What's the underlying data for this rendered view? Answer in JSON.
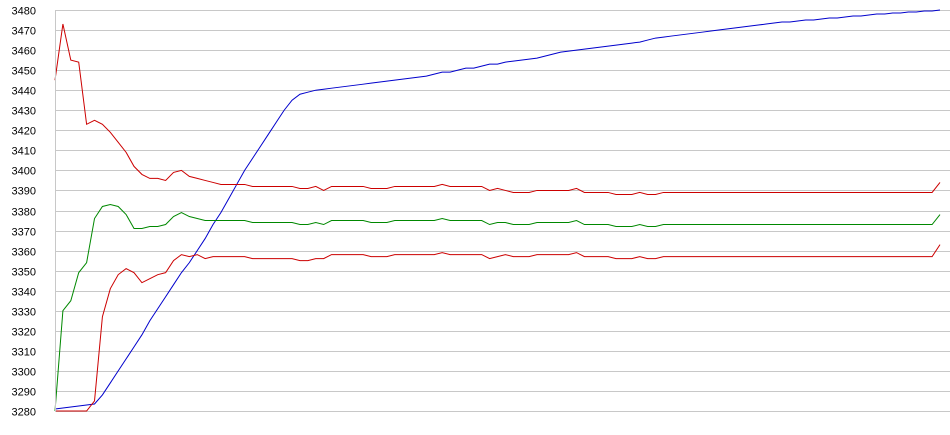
{
  "chart_data": {
    "type": "line",
    "title": "",
    "xlabel": "",
    "ylabel": "",
    "ylim": [
      3280,
      3480
    ],
    "yticks": [
      3280,
      3290,
      3300,
      3310,
      3320,
      3330,
      3340,
      3350,
      3360,
      3370,
      3380,
      3390,
      3400,
      3410,
      3420,
      3430,
      3440,
      3450,
      3460,
      3470,
      3480
    ],
    "grid": "horizontal",
    "legend": "none",
    "x": [
      0,
      1,
      2,
      3,
      4,
      5,
      6,
      7,
      8,
      9,
      10,
      11,
      12,
      13,
      14,
      15,
      16,
      17,
      18,
      19,
      20,
      21,
      22,
      23,
      24,
      25,
      26,
      27,
      28,
      29,
      30,
      31,
      32,
      33,
      34,
      35,
      36,
      37,
      38,
      39,
      40,
      41,
      42,
      43,
      44,
      45,
      46,
      47,
      48,
      49,
      50,
      51,
      52,
      53,
      54,
      55,
      56,
      57,
      58,
      59,
      60,
      61,
      62,
      63,
      64,
      65,
      66,
      67,
      68,
      69,
      70,
      71,
      72,
      73,
      74,
      75,
      76,
      77,
      78,
      79,
      80,
      81,
      82,
      83,
      84,
      85,
      86,
      87,
      88,
      89,
      90,
      91,
      92,
      93,
      94,
      95,
      96,
      97,
      98,
      99,
      100,
      101,
      102,
      103,
      104,
      105,
      106,
      107,
      108,
      109,
      110,
      111,
      112
    ],
    "series": [
      {
        "color": "#0000cc",
        "values": [
          3281,
          3281.5,
          3282,
          3282.5,
          3283,
          3283.5,
          3288,
          3294,
          3300,
          3306,
          3312,
          3318,
          3325,
          3331,
          3337,
          3343,
          3349,
          3354,
          3360,
          3366,
          3373,
          3379,
          3386,
          3393,
          3400,
          3406,
          3412,
          3418,
          3424,
          3430,
          3435,
          3438,
          3439,
          3440,
          3440.5,
          3441,
          3441.5,
          3442,
          3442.5,
          3443,
          3443.5,
          3444,
          3444.5,
          3445,
          3445.5,
          3446,
          3446.5,
          3447,
          3448,
          3449,
          3449,
          3450,
          3451,
          3451,
          3452,
          3453,
          3453,
          3454,
          3454.5,
          3455,
          3455.5,
          3456,
          3457,
          3458,
          3459,
          3459.5,
          3460,
          3460.5,
          3461,
          3461.5,
          3462,
          3462.5,
          3463,
          3463.5,
          3464,
          3465,
          3466,
          3466.5,
          3467,
          3467.5,
          3468,
          3468.5,
          3469,
          3469.5,
          3470,
          3470.5,
          3471,
          3471.5,
          3472,
          3472.5,
          3473,
          3473.5,
          3474,
          3474,
          3474.5,
          3475,
          3475,
          3475.5,
          3476,
          3476,
          3476.5,
          3477,
          3477,
          3477.5,
          3478,
          3478,
          3478.5,
          3478.5,
          3479,
          3479,
          3479.5,
          3479.5,
          3480
        ]
      },
      {
        "color": "#cc0000",
        "values": [
          3445,
          3473,
          3455,
          3454,
          3423,
          3425,
          3423,
          3419,
          3414,
          3409,
          3402,
          3398,
          3396,
          3396,
          3395,
          3399,
          3400,
          3397,
          3396,
          3395,
          3394,
          3393,
          3393,
          3393,
          3393,
          3392,
          3392,
          3392,
          3392,
          3392,
          3392,
          3391,
          3391,
          3392,
          3390,
          3392,
          3392,
          3392,
          3392,
          3392,
          3391,
          3391,
          3391,
          3392,
          3392,
          3392,
          3392,
          3392,
          3392,
          3393,
          3392,
          3392,
          3392,
          3392,
          3392,
          3390,
          3391,
          3390,
          3389,
          3389,
          3389,
          3390,
          3390,
          3390,
          3390,
          3390,
          3391,
          3389,
          3389,
          3389,
          3389,
          3388,
          3388,
          3388,
          3389,
          3388,
          3388,
          3389,
          3389,
          3389,
          3389,
          3389,
          3389,
          3389,
          3389,
          3389,
          3389,
          3389,
          3389,
          3389,
          3389,
          3389,
          3389,
          3389,
          3389,
          3389,
          3389,
          3389,
          3389,
          3389,
          3389,
          3389,
          3389,
          3389,
          3389,
          3389,
          3389,
          3389,
          3389,
          3389,
          3389,
          3389,
          3394
        ]
      },
      {
        "color": "#008800",
        "values": [
          3280,
          3330,
          3335,
          3349,
          3354,
          3376,
          3382,
          3383,
          3382,
          3378,
          3371,
          3371,
          3372,
          3372,
          3373,
          3377,
          3379,
          3377,
          3376,
          3375,
          3375,
          3375,
          3375,
          3375,
          3375,
          3374,
          3374,
          3374,
          3374,
          3374,
          3374,
          3373,
          3373,
          3374,
          3373,
          3375,
          3375,
          3375,
          3375,
          3375,
          3374,
          3374,
          3374,
          3375,
          3375,
          3375,
          3375,
          3375,
          3375,
          3376,
          3375,
          3375,
          3375,
          3375,
          3375,
          3373,
          3374,
          3374,
          3373,
          3373,
          3373,
          3374,
          3374,
          3374,
          3374,
          3374,
          3375,
          3373,
          3373,
          3373,
          3373,
          3372,
          3372,
          3372,
          3373,
          3372,
          3372,
          3373,
          3373,
          3373,
          3373,
          3373,
          3373,
          3373,
          3373,
          3373,
          3373,
          3373,
          3373,
          3373,
          3373,
          3373,
          3373,
          3373,
          3373,
          3373,
          3373,
          3373,
          3373,
          3373,
          3373,
          3373,
          3373,
          3373,
          3373,
          3373,
          3373,
          3373,
          3373,
          3373,
          3373,
          3373,
          3378
        ]
      },
      {
        "color": "#cc0000",
        "values": [
          3280,
          3280,
          3280,
          3280,
          3280,
          3285,
          3327,
          3341,
          3348,
          3351,
          3349,
          3344,
          3346,
          3348,
          3349,
          3355,
          3358,
          3357,
          3358,
          3356,
          3357,
          3357,
          3357,
          3357,
          3357,
          3356,
          3356,
          3356,
          3356,
          3356,
          3356,
          3355,
          3355,
          3356,
          3356,
          3358,
          3358,
          3358,
          3358,
          3358,
          3357,
          3357,
          3357,
          3358,
          3358,
          3358,
          3358,
          3358,
          3358,
          3359,
          3358,
          3358,
          3358,
          3358,
          3358,
          3356,
          3357,
          3358,
          3357,
          3357,
          3357,
          3358,
          3358,
          3358,
          3358,
          3358,
          3359,
          3357,
          3357,
          3357,
          3357,
          3356,
          3356,
          3356,
          3357,
          3356,
          3356,
          3357,
          3357,
          3357,
          3357,
          3357,
          3357,
          3357,
          3357,
          3357,
          3357,
          3357,
          3357,
          3357,
          3357,
          3357,
          3357,
          3357,
          3357,
          3357,
          3357,
          3357,
          3357,
          3357,
          3357,
          3357,
          3357,
          3357,
          3357,
          3357,
          3357,
          3357,
          3357,
          3357,
          3357,
          3357,
          3363
        ]
      }
    ]
  }
}
